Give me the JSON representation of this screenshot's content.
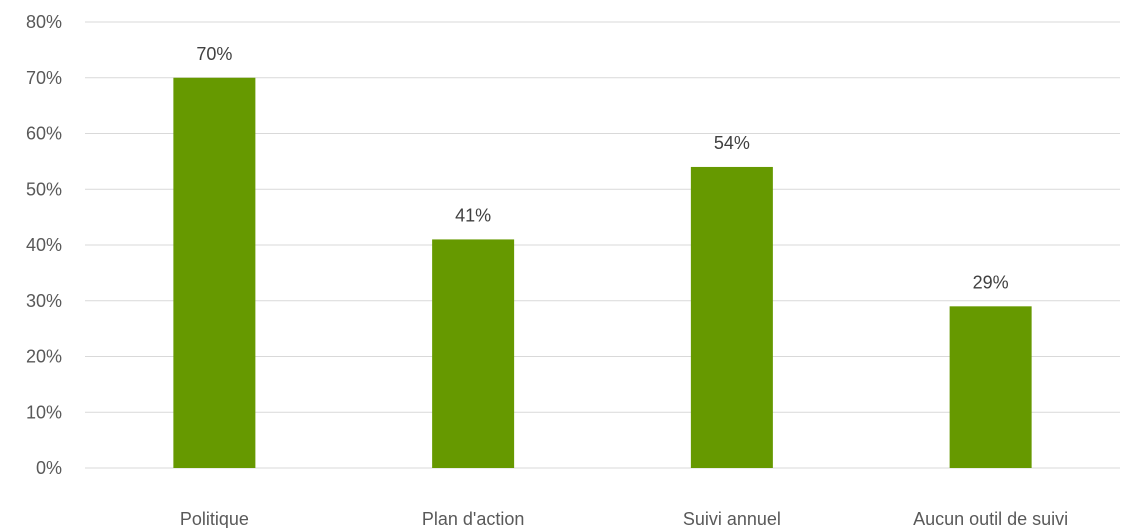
{
  "chart_data": {
    "type": "bar",
    "categories": [
      "Politique",
      "Plan d'action",
      "Suivi annuel",
      "Aucun outil de suivi"
    ],
    "values": [
      70,
      41,
      54,
      29
    ],
    "data_labels": [
      "70%",
      "41%",
      "54%",
      "29%"
    ],
    "ylim": [
      0,
      80
    ],
    "yticks": [
      0,
      10,
      20,
      30,
      40,
      50,
      60,
      70,
      80
    ],
    "ytick_labels": [
      "0%",
      "10%",
      "20%",
      "30%",
      "40%",
      "50%",
      "60%",
      "70%",
      "80%"
    ],
    "title": "",
    "xlabel": "",
    "ylabel": "",
    "grid": true,
    "bar_color": "#669900"
  }
}
